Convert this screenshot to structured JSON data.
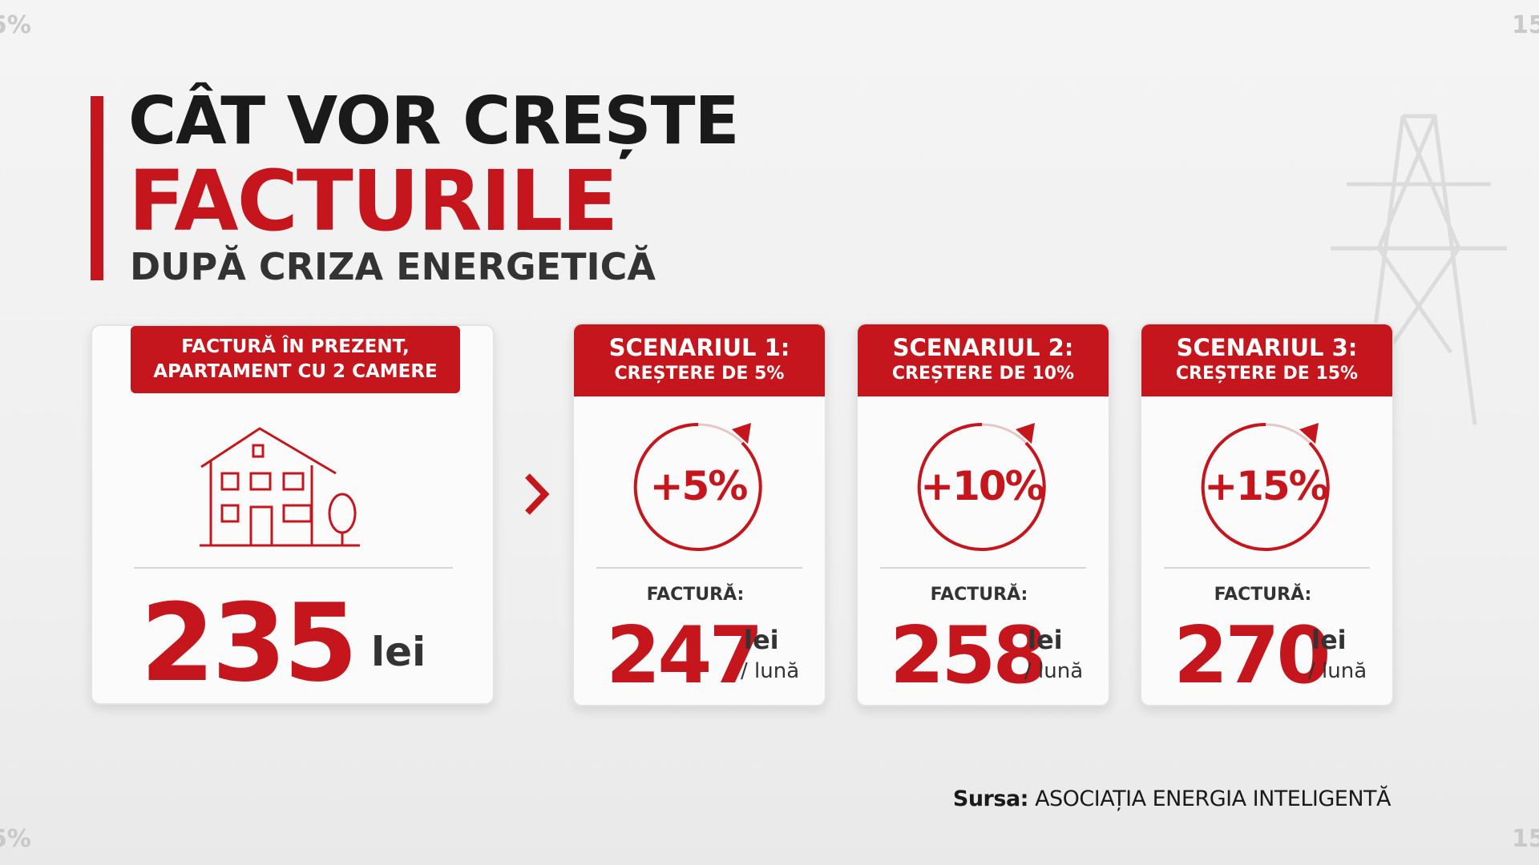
{
  "header": {
    "title_line1": "CÂT VOR CREȘTE",
    "title_line2": "FACTURILE",
    "subtitle": "DUPĂ CRIZA ENERGETICĂ"
  },
  "current": {
    "label_line1": "FACTURĂ ÎN PREZENT,",
    "label_line2": "APARTAMENT CU 2 CAMERE",
    "amount": 235,
    "unit": "lei"
  },
  "scenarios": [
    {
      "title": "SCENARIUL 1:",
      "subtitle": "CREȘTERE DE 5%",
      "badge": "+5%",
      "bill_label": "FACTURĂ:",
      "amount": 247,
      "unit": "lei",
      "period": "/ lună"
    },
    {
      "title": "SCENARIUL 2:",
      "subtitle": "CREȘTERE DE 10%",
      "badge": "+10%",
      "bill_label": "FACTURĂ:",
      "amount": 258,
      "unit": "lei",
      "period": "/ lună"
    },
    {
      "title": "SCENARIUL 3:",
      "subtitle": "CREȘTERE DE 15%",
      "badge": "+15%",
      "bill_label": "FACTURĂ:",
      "amount": 270,
      "unit": "lei",
      "period": "/ lună"
    }
  ],
  "source": {
    "label": "Sursa:",
    "name": "ASOCIAȚIA ENERGIA INTELIGENTĂ"
  },
  "corner_labels": [
    "5%",
    "15",
    "5%",
    "15"
  ]
}
